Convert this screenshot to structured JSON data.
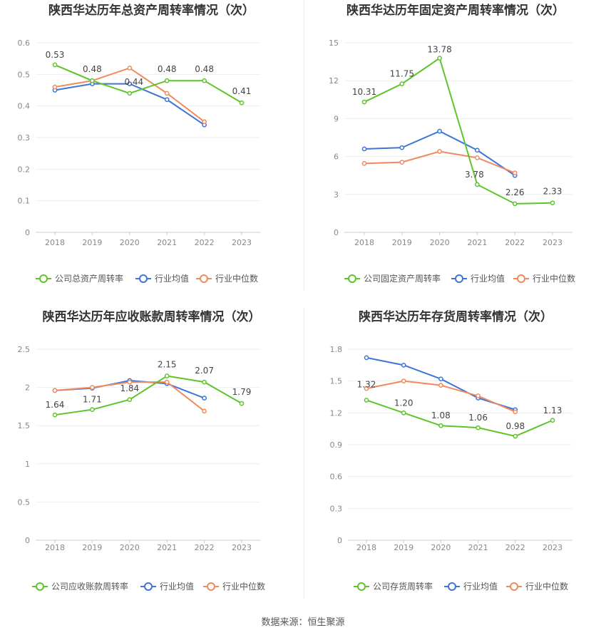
{
  "source_label": "数据来源：恒生聚源",
  "colors": {
    "company": "#5ec42a",
    "industry_avg": "#3d74d8",
    "industry_median": "#f08a5d"
  },
  "chart_data": [
    {
      "type": "line",
      "title": "陕西华达历年总资产周转率情况（次）",
      "categories": [
        "2018",
        "2019",
        "2020",
        "2021",
        "2022",
        "2023"
      ],
      "ylim": [
        0,
        0.6
      ],
      "yticks": [
        "0",
        "0.1",
        "0.2",
        "0.3",
        "0.4",
        "0.5",
        "0.6"
      ],
      "legend_position": "bottom",
      "series": [
        {
          "name": "公司总资产周转率",
          "values": [
            0.53,
            0.48,
            0.44,
            0.48,
            0.48,
            0.41
          ],
          "labels": [
            "0.53",
            "0.48",
            "0.44",
            "0.48",
            "0.48",
            "0.41"
          ]
        },
        {
          "name": "行业均值",
          "values": [
            0.45,
            0.47,
            0.47,
            0.42,
            0.34,
            null
          ]
        },
        {
          "name": "行业中位数",
          "values": [
            0.46,
            0.48,
            0.52,
            0.44,
            0.35,
            null
          ]
        }
      ]
    },
    {
      "type": "line",
      "title": "陕西华达历年固定资产周转率情况（次）",
      "categories": [
        "2018",
        "2019",
        "2020",
        "2021",
        "2022",
        "2023"
      ],
      "ylim": [
        0,
        15
      ],
      "yticks": [
        "0",
        "3",
        "6",
        "9",
        "12",
        "15"
      ],
      "legend_position": "bottom",
      "series": [
        {
          "name": "公司固定资产周转率",
          "values": [
            10.31,
            11.75,
            13.78,
            3.78,
            2.26,
            2.33
          ],
          "labels": [
            "10.31",
            "11.75",
            "13.78",
            "3.78",
            "2.26",
            "2.33"
          ]
        },
        {
          "name": "行业均值",
          "values": [
            6.6,
            6.7,
            8.0,
            6.5,
            4.5,
            null
          ]
        },
        {
          "name": "行业中位数",
          "values": [
            5.45,
            5.55,
            6.4,
            5.9,
            4.7,
            null
          ]
        }
      ]
    },
    {
      "type": "line",
      "title": "陕西华达历年应收账款周转率情况（次）",
      "categories": [
        "2018",
        "2019",
        "2020",
        "2021",
        "2022",
        "2023"
      ],
      "ylim": [
        0,
        2.5
      ],
      "yticks": [
        "0",
        "0.5",
        "1",
        "1.5",
        "2",
        "2.5"
      ],
      "legend_position": "bottom",
      "series": [
        {
          "name": "公司应收账款周转率",
          "values": [
            1.64,
            1.71,
            1.84,
            2.15,
            2.07,
            1.79
          ],
          "labels": [
            "1.64",
            "1.71",
            "1.84",
            "2.15",
            "2.07",
            "1.79"
          ]
        },
        {
          "name": "行业均值",
          "values": [
            1.96,
            1.99,
            2.09,
            2.05,
            1.86,
            null
          ]
        },
        {
          "name": "行业中位数",
          "values": [
            1.96,
            2.0,
            2.07,
            2.07,
            1.69,
            null
          ]
        }
      ]
    },
    {
      "type": "line",
      "title": "陕西华达历年存货周转率情况（次）",
      "categories": [
        "2018",
        "2019",
        "2020",
        "2021",
        "2022",
        "2023"
      ],
      "ylim": [
        0,
        1.8
      ],
      "yticks": [
        "0",
        "0.3",
        "0.6",
        "0.9",
        "1.2",
        "1.5",
        "1.8"
      ],
      "legend_position": "bottom",
      "series": [
        {
          "name": "公司存货周转率",
          "values": [
            1.32,
            1.2,
            1.08,
            1.06,
            0.98,
            1.13
          ],
          "labels": [
            "1.32",
            "1.20",
            "1.08",
            "1.06",
            "0.98",
            "1.13"
          ]
        },
        {
          "name": "行业均值",
          "values": [
            1.72,
            1.65,
            1.52,
            1.34,
            1.23,
            null
          ]
        },
        {
          "name": "行业中位数",
          "values": [
            1.43,
            1.5,
            1.46,
            1.36,
            1.21,
            null
          ]
        }
      ]
    }
  ]
}
